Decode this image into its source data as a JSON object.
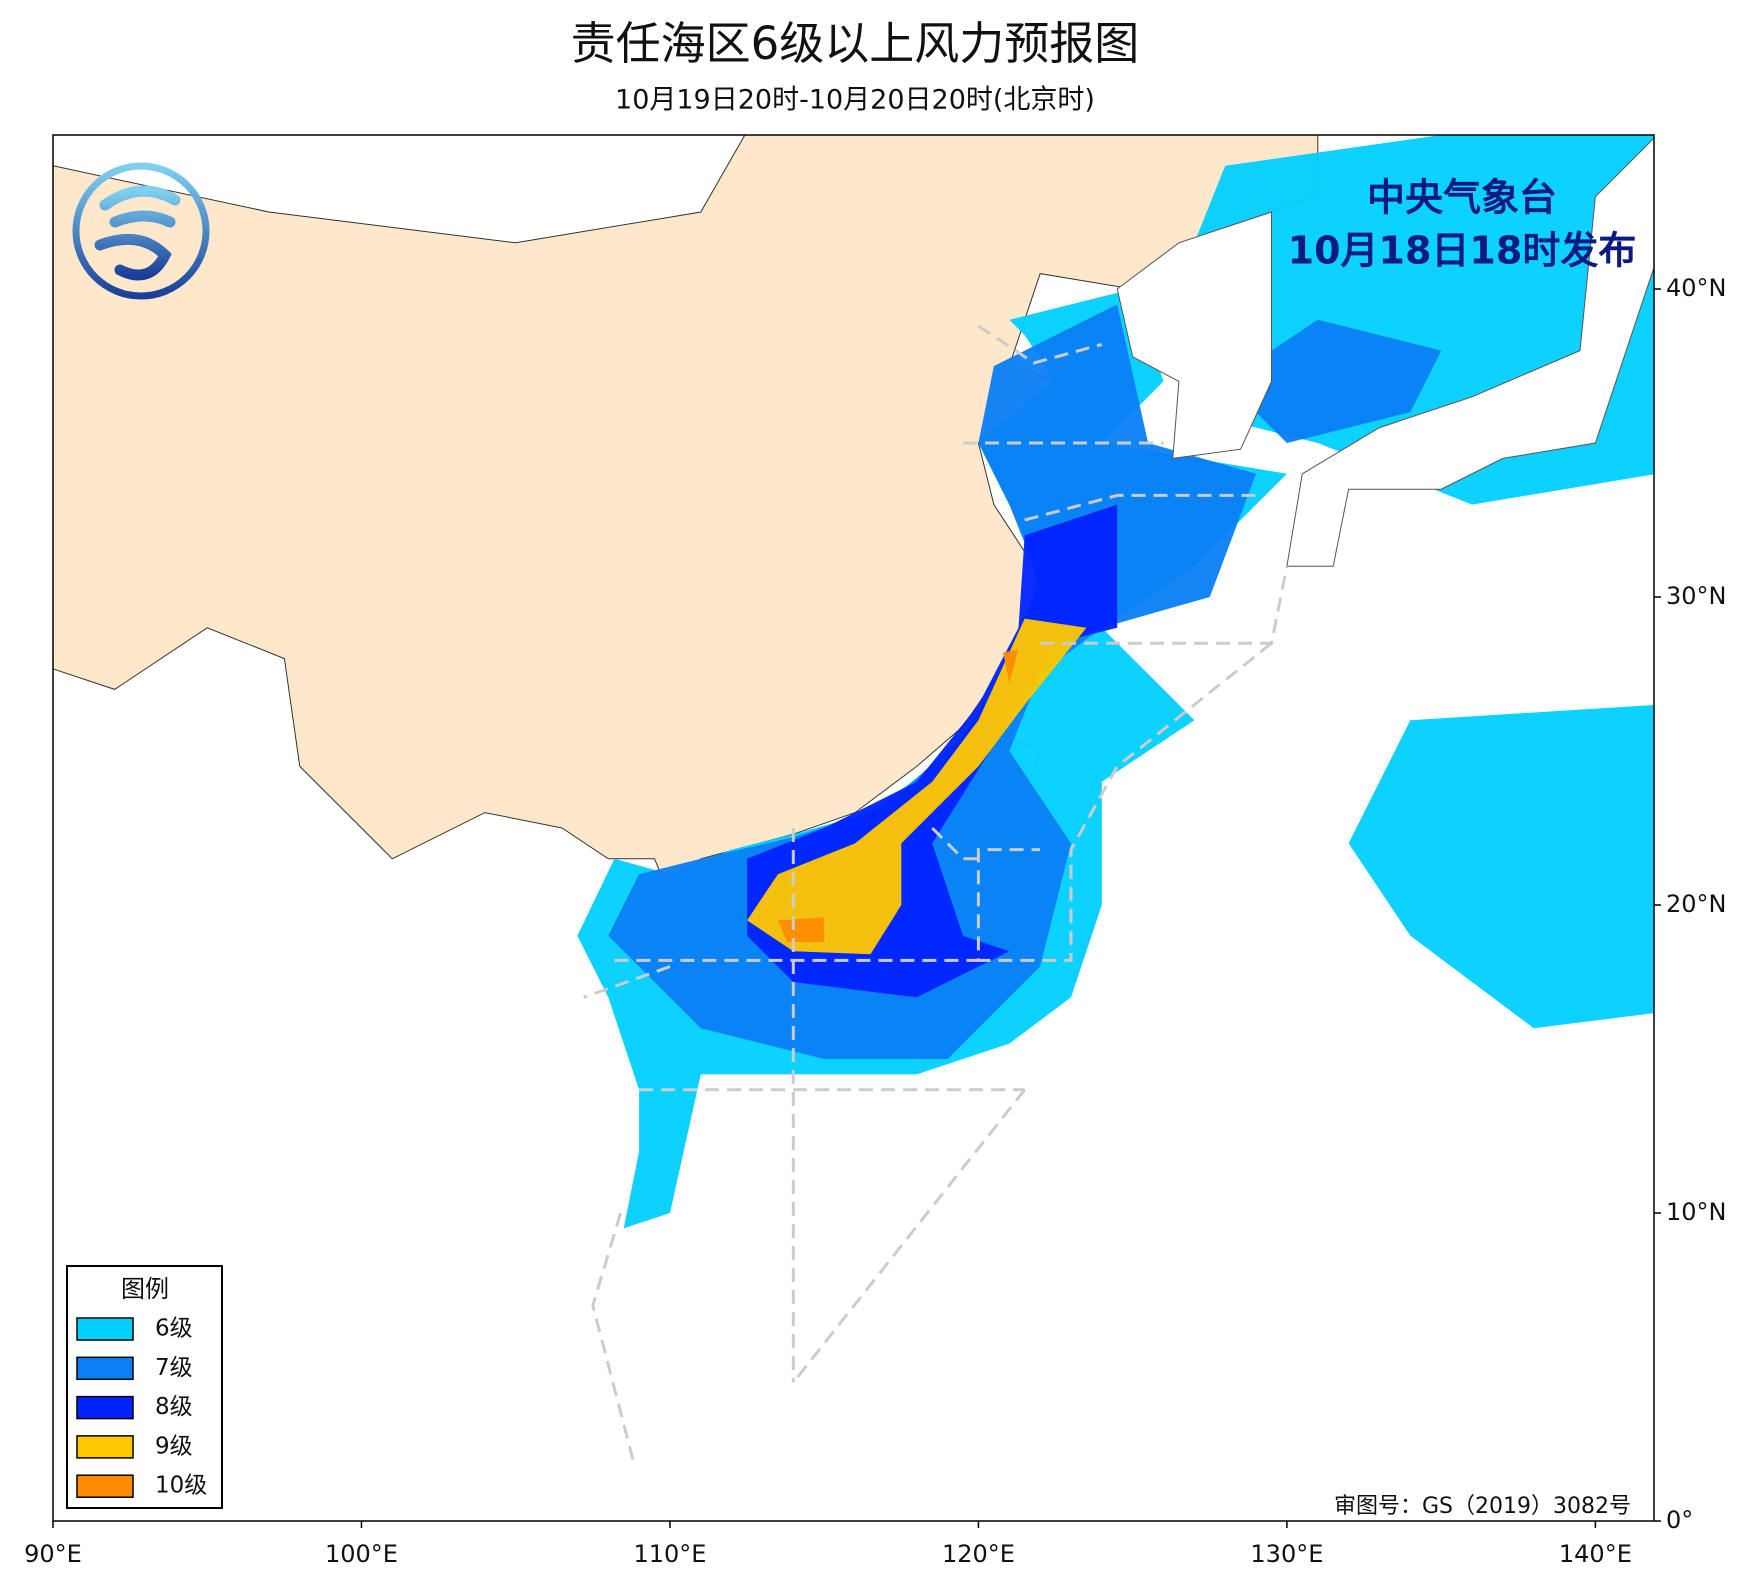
{
  "title": "责任海区6级以上风力预报图",
  "subtitle": "10月19日20时-10月20日20时(北京时)",
  "issuer": "中央气象台",
  "issue_time": "10月18日18时发布",
  "approval": "审图号：GS（2019）3082号",
  "map": {
    "xlim": [
      90,
      141.9
    ],
    "ylim": [
      0,
      45
    ],
    "xticks": [
      {
        "value": 90,
        "label": "90°E"
      },
      {
        "value": 100,
        "label": "100°E"
      },
      {
        "value": 110,
        "label": "110°E"
      },
      {
        "value": 120,
        "label": "120°E"
      },
      {
        "value": 130,
        "label": "130°E"
      },
      {
        "value": 140,
        "label": "140°E"
      }
    ],
    "yticks": [
      {
        "value": 0,
        "label": "0°"
      },
      {
        "value": 10,
        "label": "10°N"
      },
      {
        "value": 20,
        "label": "20°N"
      },
      {
        "value": 30,
        "label": "30°N"
      },
      {
        "value": 40,
        "label": "40°N"
      }
    ]
  },
  "legend": {
    "title": "图例",
    "items": [
      {
        "label": "6级",
        "color": "#00cfff"
      },
      {
        "label": "7级",
        "color": "#0a7ef5"
      },
      {
        "label": "8级",
        "color": "#0022ff"
      },
      {
        "label": "9级",
        "color": "#ffc800"
      },
      {
        "label": "10级",
        "color": "#ff8c00"
      }
    ]
  }
}
